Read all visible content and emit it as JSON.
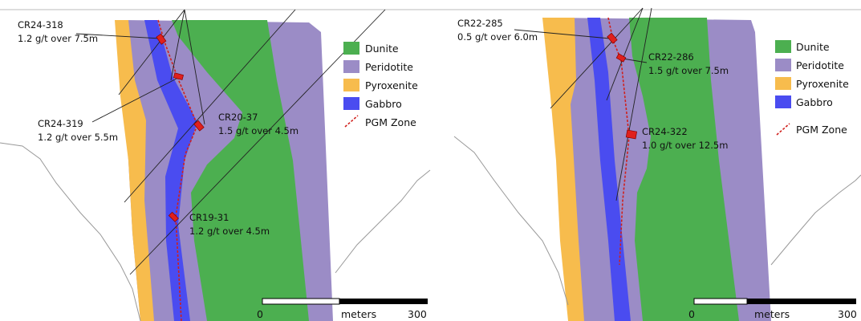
{
  "panels": [
    {
      "holes": [
        {
          "name": "CR24-318",
          "grade": "1.2 g/t over 7.5m"
        },
        {
          "name": "CR24-319",
          "grade": "1.2 g/t over 5.5m"
        },
        {
          "name": "CR20-37",
          "grade": "1.5 g/t over 4.5m"
        },
        {
          "name": "CR19-31",
          "grade": "1.2 g/t over 4.5m"
        }
      ],
      "legend": [
        "Dunite",
        "Peridotite",
        "Pyroxenite",
        "Gabbro",
        "PGM Zone"
      ],
      "scale": {
        "start": "0",
        "unit": "meters",
        "end": "300"
      }
    },
    {
      "holes": [
        {
          "name": "CR22-285",
          "grade": "0.5 g/t over 6.0m"
        },
        {
          "name": "CR22-286",
          "grade": "1.5 g/t over 7.5m"
        },
        {
          "name": "CR24-322",
          "grade": "1.0 g/t over 12.5m"
        }
      ],
      "legend": [
        "Dunite",
        "Peridotite",
        "Pyroxenite",
        "Gabbro",
        "PGM Zone"
      ],
      "scale": {
        "start": "0",
        "unit": "meters",
        "end": "300"
      }
    }
  ]
}
